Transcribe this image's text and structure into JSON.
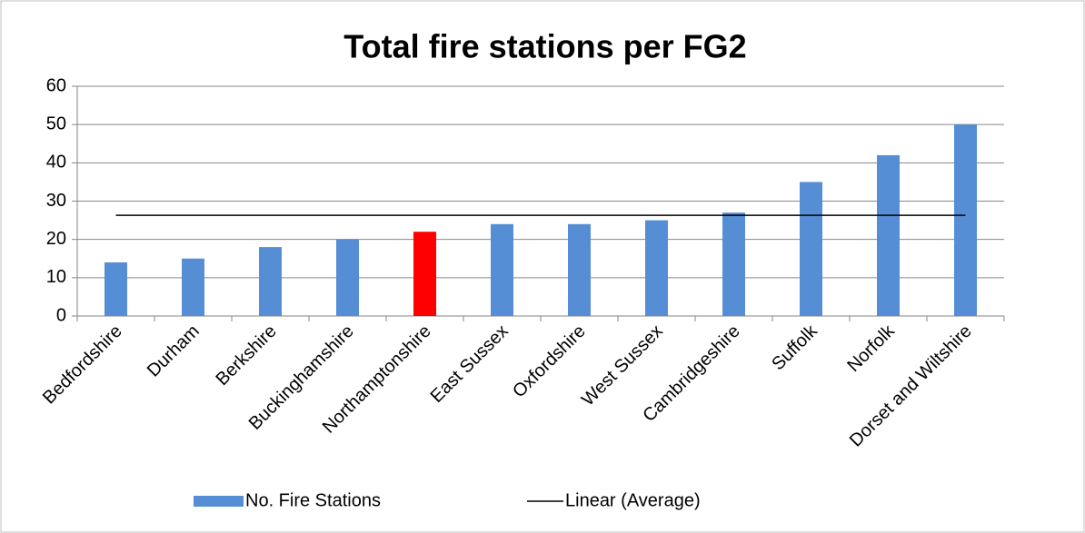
{
  "chart_data": {
    "type": "bar",
    "title": "Total fire stations per FG2",
    "categories": [
      "Bedfordshire",
      "Durham",
      "Berkshire",
      "Buckinghamshire",
      "Northamptonshire",
      "East Sussex",
      "Oxfordshire",
      "West Sussex",
      "Cambridgeshire",
      "Suffolk",
      "Norfolk",
      "Dorset and Wiltshire"
    ],
    "series": [
      {
        "name": "No. Fire Stations",
        "type": "bar",
        "color": "#558ed5",
        "colors": [
          "#558ed5",
          "#558ed5",
          "#558ed5",
          "#558ed5",
          "#ff0000",
          "#558ed5",
          "#558ed5",
          "#558ed5",
          "#558ed5",
          "#558ed5",
          "#558ed5",
          "#558ed5"
        ],
        "values": [
          14,
          15,
          18,
          20,
          22,
          24,
          24,
          25,
          27,
          35,
          42,
          50
        ]
      },
      {
        "name": "Linear (Average)",
        "type": "line",
        "color": "#000000",
        "values": [
          26.3,
          26.3,
          26.3,
          26.3,
          26.3,
          26.3,
          26.3,
          26.3,
          26.3,
          26.3,
          26.3,
          26.3
        ]
      }
    ],
    "ylim": [
      0,
      60
    ],
    "yticks": [
      0,
      10,
      20,
      30,
      40,
      50,
      60
    ],
    "grid": true,
    "legend": "bottom"
  }
}
